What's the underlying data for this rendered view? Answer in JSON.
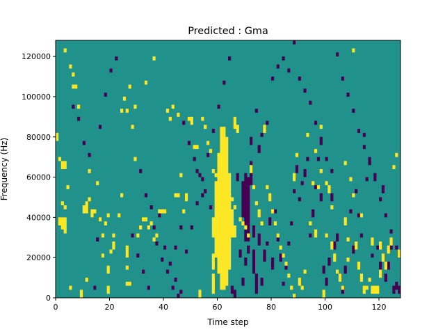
{
  "chart_data": {
    "type": "heatmap",
    "title": "Predicted : Gma",
    "xlabel": "Time step",
    "ylabel": "Frequency (Hz)",
    "xlim": [
      0,
      128
    ],
    "ylim": [
      0,
      128000
    ],
    "xticks": [
      0,
      20,
      40,
      60,
      80,
      100,
      120
    ],
    "yticks": [
      0,
      20000,
      40000,
      60000,
      80000,
      100000,
      120000
    ],
    "grid": false,
    "colors": {
      "background": "#21918c",
      "high": "#fde725",
      "low": "#440154"
    },
    "n_time_steps": 128,
    "n_freq_bins": 128,
    "bin_hz": 1000,
    "cells_high": [
      [
        61,
        4,
        85
      ],
      [
        62,
        4,
        85
      ],
      [
        60,
        12,
        72
      ],
      [
        63,
        6,
        80
      ],
      [
        59,
        20,
        58
      ],
      [
        64,
        14,
        62
      ],
      [
        58,
        30,
        40
      ],
      [
        58,
        14,
        22
      ],
      [
        64,
        28,
        48
      ],
      [
        65,
        30,
        44
      ],
      [
        66,
        30,
        36
      ],
      [
        58,
        2,
        12
      ],
      [
        2,
        34,
        40
      ],
      [
        3,
        32,
        40
      ],
      [
        1,
        36,
        40
      ],
      [
        2,
        64,
        68
      ],
      [
        3,
        64,
        68
      ],
      [
        3,
        44,
        46
      ],
      [
        4,
        54,
        56
      ],
      [
        3,
        122,
        124
      ],
      [
        5,
        114,
        116
      ],
      [
        6,
        110,
        112
      ],
      [
        6,
        104,
        106
      ],
      [
        7,
        104,
        106
      ],
      [
        8,
        94,
        96
      ],
      [
        0,
        78,
        82
      ],
      [
        1,
        68,
        70
      ],
      [
        2,
        46,
        48
      ],
      [
        5,
        4,
        6
      ],
      [
        9,
        0,
        4
      ],
      [
        10,
        42,
        46
      ],
      [
        11,
        42,
        48
      ],
      [
        13,
        40,
        44
      ],
      [
        14,
        42,
        44
      ],
      [
        15,
        56,
        58
      ],
      [
        12,
        62,
        64
      ],
      [
        11,
        8,
        10
      ],
      [
        12,
        48,
        50
      ],
      [
        16,
        38,
        40
      ],
      [
        17,
        30,
        32
      ],
      [
        18,
        36,
        38
      ],
      [
        19,
        40,
        42
      ],
      [
        17,
        20,
        22
      ],
      [
        19,
        12,
        14
      ],
      [
        19,
        14,
        16
      ],
      [
        19,
        2,
        6
      ],
      [
        20,
        22,
        24
      ],
      [
        21,
        30,
        32
      ],
      [
        21,
        24,
        28
      ],
      [
        23,
        40,
        42
      ],
      [
        24,
        50,
        52
      ],
      [
        26,
        20,
        26
      ],
      [
        26,
        14,
        16
      ],
      [
        26,
        6,
        8
      ],
      [
        27,
        6,
        8
      ],
      [
        24,
        92,
        94
      ],
      [
        25,
        98,
        100
      ],
      [
        27,
        104,
        106
      ],
      [
        28,
        84,
        86
      ],
      [
        29,
        68,
        70
      ],
      [
        30,
        30,
        32
      ],
      [
        31,
        34,
        36
      ],
      [
        32,
        38,
        40
      ],
      [
        33,
        38,
        40
      ],
      [
        34,
        34,
        36
      ],
      [
        35,
        36,
        38
      ],
      [
        36,
        28,
        30
      ],
      [
        37,
        30,
        32
      ],
      [
        38,
        42,
        44
      ],
      [
        39,
        42,
        44
      ],
      [
        40,
        42,
        44
      ],
      [
        41,
        92,
        94
      ],
      [
        42,
        88,
        90
      ],
      [
        43,
        94,
        96
      ],
      [
        44,
        50,
        52
      ],
      [
        45,
        50,
        52
      ],
      [
        46,
        60,
        62
      ],
      [
        47,
        42,
        44
      ],
      [
        48,
        48,
        52
      ],
      [
        49,
        88,
        90
      ],
      [
        50,
        86,
        90
      ],
      [
        51,
        74,
        76
      ],
      [
        52,
        74,
        76
      ],
      [
        53,
        0,
        4
      ],
      [
        54,
        88,
        90
      ],
      [
        55,
        84,
        86
      ],
      [
        56,
        76,
        78
      ],
      [
        57,
        72,
        74
      ],
      [
        58,
        62,
        64
      ],
      [
        59,
        60,
        62
      ],
      [
        60,
        70,
        72
      ],
      [
        61,
        64,
        66
      ],
      [
        62,
        56,
        58
      ],
      [
        63,
        52,
        54
      ],
      [
        64,
        50,
        52
      ],
      [
        65,
        48,
        50
      ],
      [
        66,
        44,
        46
      ],
      [
        66,
        84,
        90
      ],
      [
        67,
        82,
        86
      ],
      [
        68,
        38,
        40
      ],
      [
        69,
        36,
        38
      ],
      [
        70,
        34,
        36
      ],
      [
        71,
        30,
        32
      ],
      [
        72,
        62,
        66
      ],
      [
        73,
        54,
        56
      ],
      [
        74,
        46,
        48
      ],
      [
        75,
        40,
        44
      ],
      [
        76,
        36,
        38
      ],
      [
        77,
        82,
        86
      ],
      [
        78,
        54,
        56
      ],
      [
        79,
        48,
        52
      ],
      [
        80,
        42,
        44
      ],
      [
        81,
        36,
        38
      ],
      [
        82,
        30,
        32
      ],
      [
        83,
        24,
        26
      ],
      [
        84,
        20,
        22
      ],
      [
        85,
        16,
        18
      ],
      [
        86,
        10,
        12
      ],
      [
        87,
        4,
        6
      ],
      [
        88,
        0,
        2
      ],
      [
        89,
        70,
        72
      ],
      [
        90,
        6,
        10
      ],
      [
        91,
        4,
        6
      ],
      [
        92,
        12,
        14
      ],
      [
        93,
        80,
        82
      ],
      [
        94,
        36,
        38
      ],
      [
        95,
        56,
        58
      ],
      [
        96,
        72,
        74
      ],
      [
        97,
        54,
        56
      ],
      [
        98,
        62,
        64
      ],
      [
        99,
        0,
        4
      ],
      [
        100,
        30,
        32
      ],
      [
        101,
        52,
        56
      ],
      [
        102,
        24,
        28
      ],
      [
        103,
        18,
        22
      ],
      [
        104,
        12,
        14
      ],
      [
        105,
        8,
        12
      ],
      [
        106,
        4,
        6
      ],
      [
        107,
        66,
        68
      ],
      [
        108,
        18,
        20
      ],
      [
        109,
        58,
        60
      ],
      [
        110,
        50,
        52
      ],
      [
        111,
        24,
        28
      ],
      [
        112,
        14,
        18
      ],
      [
        113,
        8,
        12
      ],
      [
        114,
        2,
        6
      ],
      [
        115,
        4,
        6
      ],
      [
        116,
        8,
        10
      ],
      [
        117,
        2,
        6
      ],
      [
        118,
        2,
        6
      ],
      [
        119,
        2,
        6
      ],
      [
        120,
        10,
        14
      ],
      [
        121,
        18,
        22
      ],
      [
        122,
        14,
        18
      ],
      [
        123,
        22,
        26
      ],
      [
        124,
        26,
        30
      ],
      [
        125,
        64,
        66
      ],
      [
        126,
        70,
        72
      ],
      [
        127,
        20,
        24
      ],
      [
        26,
        92,
        94
      ],
      [
        29,
        94,
        96
      ],
      [
        33,
        106,
        108
      ],
      [
        36,
        118,
        120
      ],
      [
        45,
        90,
        92
      ],
      [
        60,
        58,
        62
      ],
      [
        62,
        4,
        8
      ],
      [
        88,
        58,
        62
      ],
      [
        96,
        30,
        34
      ],
      [
        98,
        84,
        86
      ],
      [
        100,
        56,
        58
      ],
      [
        102,
        44,
        46
      ],
      [
        107,
        36,
        40
      ],
      [
        108,
        28,
        30
      ],
      [
        110,
        122,
        124
      ],
      [
        113,
        40,
        42
      ],
      [
        117,
        26,
        30
      ],
      [
        120,
        24,
        28
      ]
    ],
    "cells_low": [
      [
        69,
        40,
        58
      ],
      [
        70,
        28,
        62
      ],
      [
        71,
        28,
        60
      ],
      [
        72,
        56,
        68
      ],
      [
        73,
        12,
        24
      ],
      [
        73,
        30,
        36
      ],
      [
        74,
        2,
        12
      ],
      [
        75,
        26,
        32
      ],
      [
        76,
        6,
        10
      ],
      [
        77,
        18,
        24
      ],
      [
        78,
        26,
        28
      ],
      [
        79,
        36,
        40
      ],
      [
        80,
        14,
        20
      ],
      [
        81,
        42,
        44
      ],
      [
        82,
        28,
        30
      ],
      [
        83,
        18,
        22
      ],
      [
        84,
        6,
        8
      ],
      [
        85,
        14,
        16
      ],
      [
        86,
        26,
        28
      ],
      [
        87,
        36,
        38
      ],
      [
        88,
        52,
        54
      ],
      [
        89,
        62,
        66
      ],
      [
        90,
        48,
        50
      ],
      [
        91,
        56,
        58
      ],
      [
        92,
        60,
        64
      ],
      [
        93,
        68,
        70
      ],
      [
        94,
        30,
        32
      ],
      [
        95,
        40,
        44
      ],
      [
        96,
        54,
        56
      ],
      [
        97,
        68,
        70
      ],
      [
        98,
        48,
        52
      ],
      [
        99,
        12,
        16
      ],
      [
        100,
        6,
        10
      ],
      [
        101,
        16,
        20
      ],
      [
        102,
        48,
        52
      ],
      [
        103,
        24,
        28
      ],
      [
        104,
        28,
        32
      ],
      [
        105,
        10,
        12
      ],
      [
        106,
        2,
        6
      ],
      [
        107,
        12,
        16
      ],
      [
        108,
        18,
        20
      ],
      [
        109,
        42,
        44
      ],
      [
        110,
        22,
        26
      ],
      [
        111,
        52,
        54
      ],
      [
        112,
        40,
        42
      ],
      [
        113,
        30,
        32
      ],
      [
        114,
        80,
        82
      ],
      [
        115,
        58,
        60
      ],
      [
        116,
        66,
        70
      ],
      [
        117,
        20,
        22
      ],
      [
        118,
        60,
        62
      ],
      [
        119,
        24,
        26
      ],
      [
        120,
        14,
        18
      ],
      [
        121,
        52,
        56
      ],
      [
        122,
        8,
        12
      ],
      [
        123,
        14,
        18
      ],
      [
        124,
        24,
        28
      ],
      [
        125,
        2,
        6
      ],
      [
        126,
        4,
        8
      ],
      [
        127,
        2,
        6
      ],
      [
        65,
        2,
        6
      ],
      [
        66,
        0,
        4
      ],
      [
        67,
        58,
        62
      ],
      [
        68,
        20,
        24
      ],
      [
        69,
        6,
        10
      ],
      [
        70,
        16,
        20
      ],
      [
        71,
        22,
        26
      ],
      [
        72,
        76,
        80
      ],
      [
        74,
        92,
        94
      ],
      [
        75,
        72,
        76
      ],
      [
        76,
        80,
        82
      ],
      [
        78,
        86,
        88
      ],
      [
        80,
        108,
        110
      ],
      [
        82,
        114,
        116
      ],
      [
        84,
        118,
        120
      ],
      [
        86,
        112,
        114
      ],
      [
        88,
        126,
        128
      ],
      [
        90,
        108,
        110
      ],
      [
        92,
        102,
        104
      ],
      [
        94,
        96,
        98
      ],
      [
        96,
        86,
        88
      ],
      [
        98,
        76,
        80
      ],
      [
        100,
        68,
        70
      ],
      [
        102,
        62,
        64
      ],
      [
        104,
        120,
        122
      ],
      [
        106,
        108,
        110
      ],
      [
        108,
        100,
        102
      ],
      [
        110,
        92,
        94
      ],
      [
        112,
        82,
        84
      ],
      [
        114,
        74,
        76
      ],
      [
        116,
        66,
        68
      ],
      [
        118,
        58,
        60
      ],
      [
        120,
        48,
        50
      ],
      [
        122,
        40,
        42
      ],
      [
        124,
        32,
        34
      ],
      [
        126,
        24,
        26
      ],
      [
        28,
        30,
        32
      ],
      [
        30,
        20,
        22
      ],
      [
        32,
        12,
        14
      ],
      [
        34,
        4,
        6
      ],
      [
        36,
        34,
        36
      ],
      [
        38,
        40,
        42
      ],
      [
        40,
        24,
        26
      ],
      [
        42,
        16,
        18
      ],
      [
        44,
        8,
        10
      ],
      [
        46,
        2,
        4
      ],
      [
        48,
        22,
        24
      ],
      [
        50,
        34,
        36
      ],
      [
        52,
        46,
        48
      ],
      [
        54,
        58,
        60
      ],
      [
        56,
        70,
        72
      ],
      [
        58,
        82,
        84
      ],
      [
        60,
        94,
        96
      ],
      [
        62,
        106,
        108
      ],
      [
        64,
        118,
        120
      ],
      [
        14,
        4,
        6
      ],
      [
        15,
        28,
        30
      ],
      [
        16,
        84,
        86
      ],
      [
        18,
        100,
        102
      ],
      [
        20,
        112,
        114
      ],
      [
        22,
        118,
        120
      ],
      [
        6,
        94,
        96
      ],
      [
        8,
        88,
        90
      ],
      [
        10,
        76,
        78
      ],
      [
        12,
        70,
        72
      ],
      [
        44,
        24,
        26
      ],
      [
        46,
        34,
        36
      ],
      [
        52,
        62,
        64
      ],
      [
        54,
        50,
        52
      ],
      [
        31,
        62,
        64
      ],
      [
        33,
        50,
        52
      ],
      [
        35,
        44,
        46
      ],
      [
        37,
        26,
        28
      ],
      [
        39,
        18,
        20
      ],
      [
        41,
        12,
        14
      ],
      [
        43,
        4,
        6
      ],
      [
        45,
        0,
        2
      ],
      [
        47,
        86,
        88
      ],
      [
        49,
        76,
        78
      ],
      [
        51,
        68,
        70
      ],
      [
        53,
        60,
        62
      ],
      [
        55,
        52,
        54
      ],
      [
        57,
        44,
        46
      ],
      [
        59,
        36,
        38
      ],
      [
        61,
        28,
        30
      ]
    ]
  }
}
